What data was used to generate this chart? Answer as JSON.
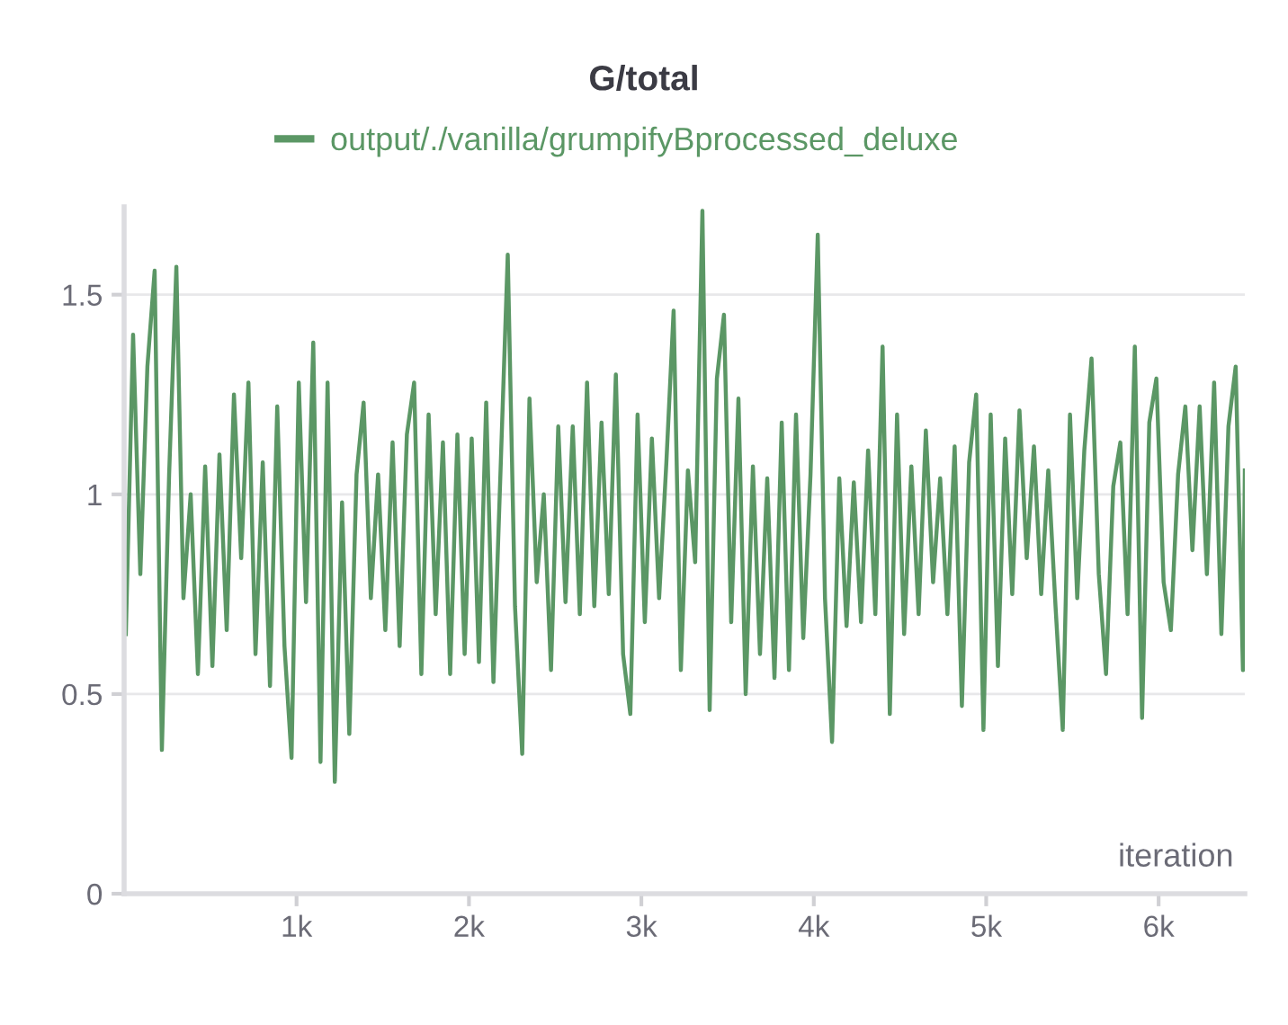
{
  "chart_data": {
    "type": "line",
    "title": "G/total",
    "xlabel": "iteration",
    "xlim": [
      0,
      6500
    ],
    "ylim": [
      0,
      1.72
    ],
    "xticks": [
      {
        "value": 1000,
        "label": "1k"
      },
      {
        "value": 2000,
        "label": "2k"
      },
      {
        "value": 3000,
        "label": "3k"
      },
      {
        "value": 4000,
        "label": "4k"
      },
      {
        "value": 5000,
        "label": "5k"
      },
      {
        "value": 6000,
        "label": "6k"
      }
    ],
    "yticks": [
      0,
      0.5,
      1,
      1.5
    ],
    "grid": "y",
    "legend": "top",
    "marker": "none",
    "line_style": "solid",
    "series": [
      {
        "name": "output/./vanilla/grumpifyBprocessed_deluxe",
        "color": "#5b9765",
        "x": [
          10,
          52,
          94,
          135,
          177,
          219,
          261,
          303,
          344,
          386,
          428,
          470,
          512,
          553,
          595,
          637,
          679,
          721,
          762,
          804,
          846,
          888,
          930,
          971,
          1013,
          1055,
          1097,
          1139,
          1180,
          1222,
          1264,
          1306,
          1348,
          1389,
          1431,
          1473,
          1515,
          1557,
          1598,
          1640,
          1682,
          1724,
          1766,
          1807,
          1849,
          1891,
          1933,
          1975,
          2016,
          2058,
          2100,
          2142,
          2184,
          2225,
          2267,
          2309,
          2351,
          2393,
          2434,
          2476,
          2518,
          2560,
          2602,
          2643,
          2685,
          2727,
          2769,
          2811,
          2852,
          2894,
          2936,
          2978,
          3020,
          3061,
          3103,
          3145,
          3187,
          3229,
          3270,
          3312,
          3354,
          3396,
          3438,
          3479,
          3521,
          3563,
          3605,
          3647,
          3688,
          3730,
          3772,
          3814,
          3856,
          3897,
          3939,
          3981,
          4023,
          4065,
          4106,
          4148,
          4190,
          4232,
          4274,
          4315,
          4357,
          4399,
          4441,
          4483,
          4524,
          4566,
          4608,
          4650,
          4692,
          4733,
          4775,
          4817,
          4859,
          4901,
          4942,
          4984,
          5026,
          5068,
          5110,
          5151,
          5193,
          5235,
          5277,
          5319,
          5360,
          5402,
          5444,
          5486,
          5528,
          5569,
          5611,
          5653,
          5695,
          5737,
          5778,
          5820,
          5862,
          5904,
          5946,
          5987,
          6029,
          6071,
          6113,
          6155,
          6196,
          6238,
          6280,
          6322,
          6364,
          6405,
          6447,
          6489,
          6500
        ],
        "values": [
          0.65,
          1.4,
          0.8,
          1.32,
          1.56,
          0.36,
          1.05,
          1.57,
          0.74,
          1.0,
          0.55,
          1.07,
          0.57,
          1.1,
          0.66,
          1.25,
          0.84,
          1.28,
          0.6,
          1.08,
          0.52,
          1.22,
          0.62,
          0.34,
          1.28,
          0.73,
          1.38,
          0.33,
          1.28,
          0.28,
          0.98,
          0.4,
          1.05,
          1.23,
          0.74,
          1.05,
          0.66,
          1.13,
          0.62,
          1.15,
          1.28,
          0.55,
          1.2,
          0.7,
          1.13,
          0.55,
          1.15,
          0.6,
          1.14,
          0.58,
          1.23,
          0.53,
          1.07,
          1.6,
          0.72,
          0.35,
          1.24,
          0.78,
          1.0,
          0.56,
          1.17,
          0.73,
          1.17,
          0.7,
          1.28,
          0.72,
          1.18,
          0.75,
          1.3,
          0.6,
          0.45,
          1.2,
          0.68,
          1.14,
          0.74,
          1.08,
          1.46,
          0.56,
          1.06,
          0.83,
          1.71,
          0.46,
          1.29,
          1.45,
          0.68,
          1.24,
          0.5,
          1.07,
          0.6,
          1.04,
          0.54,
          1.18,
          0.56,
          1.2,
          0.64,
          1.05,
          1.65,
          0.74,
          0.38,
          1.04,
          0.67,
          1.03,
          0.68,
          1.11,
          0.7,
          1.37,
          0.45,
          1.2,
          0.65,
          1.07,
          0.7,
          1.16,
          0.78,
          1.04,
          0.7,
          1.12,
          0.47,
          1.08,
          1.25,
          0.41,
          1.2,
          0.57,
          1.14,
          0.75,
          1.21,
          0.84,
          1.12,
          0.75,
          1.06,
          0.72,
          0.41,
          1.2,
          0.74,
          1.11,
          1.34,
          0.8,
          0.55,
          1.02,
          1.13,
          0.7,
          1.37,
          0.44,
          1.18,
          1.29,
          0.78,
          0.66,
          1.05,
          1.22,
          0.86,
          1.22,
          0.8,
          1.28,
          0.65,
          1.17,
          1.32,
          0.56,
          1.06
        ]
      }
    ]
  }
}
